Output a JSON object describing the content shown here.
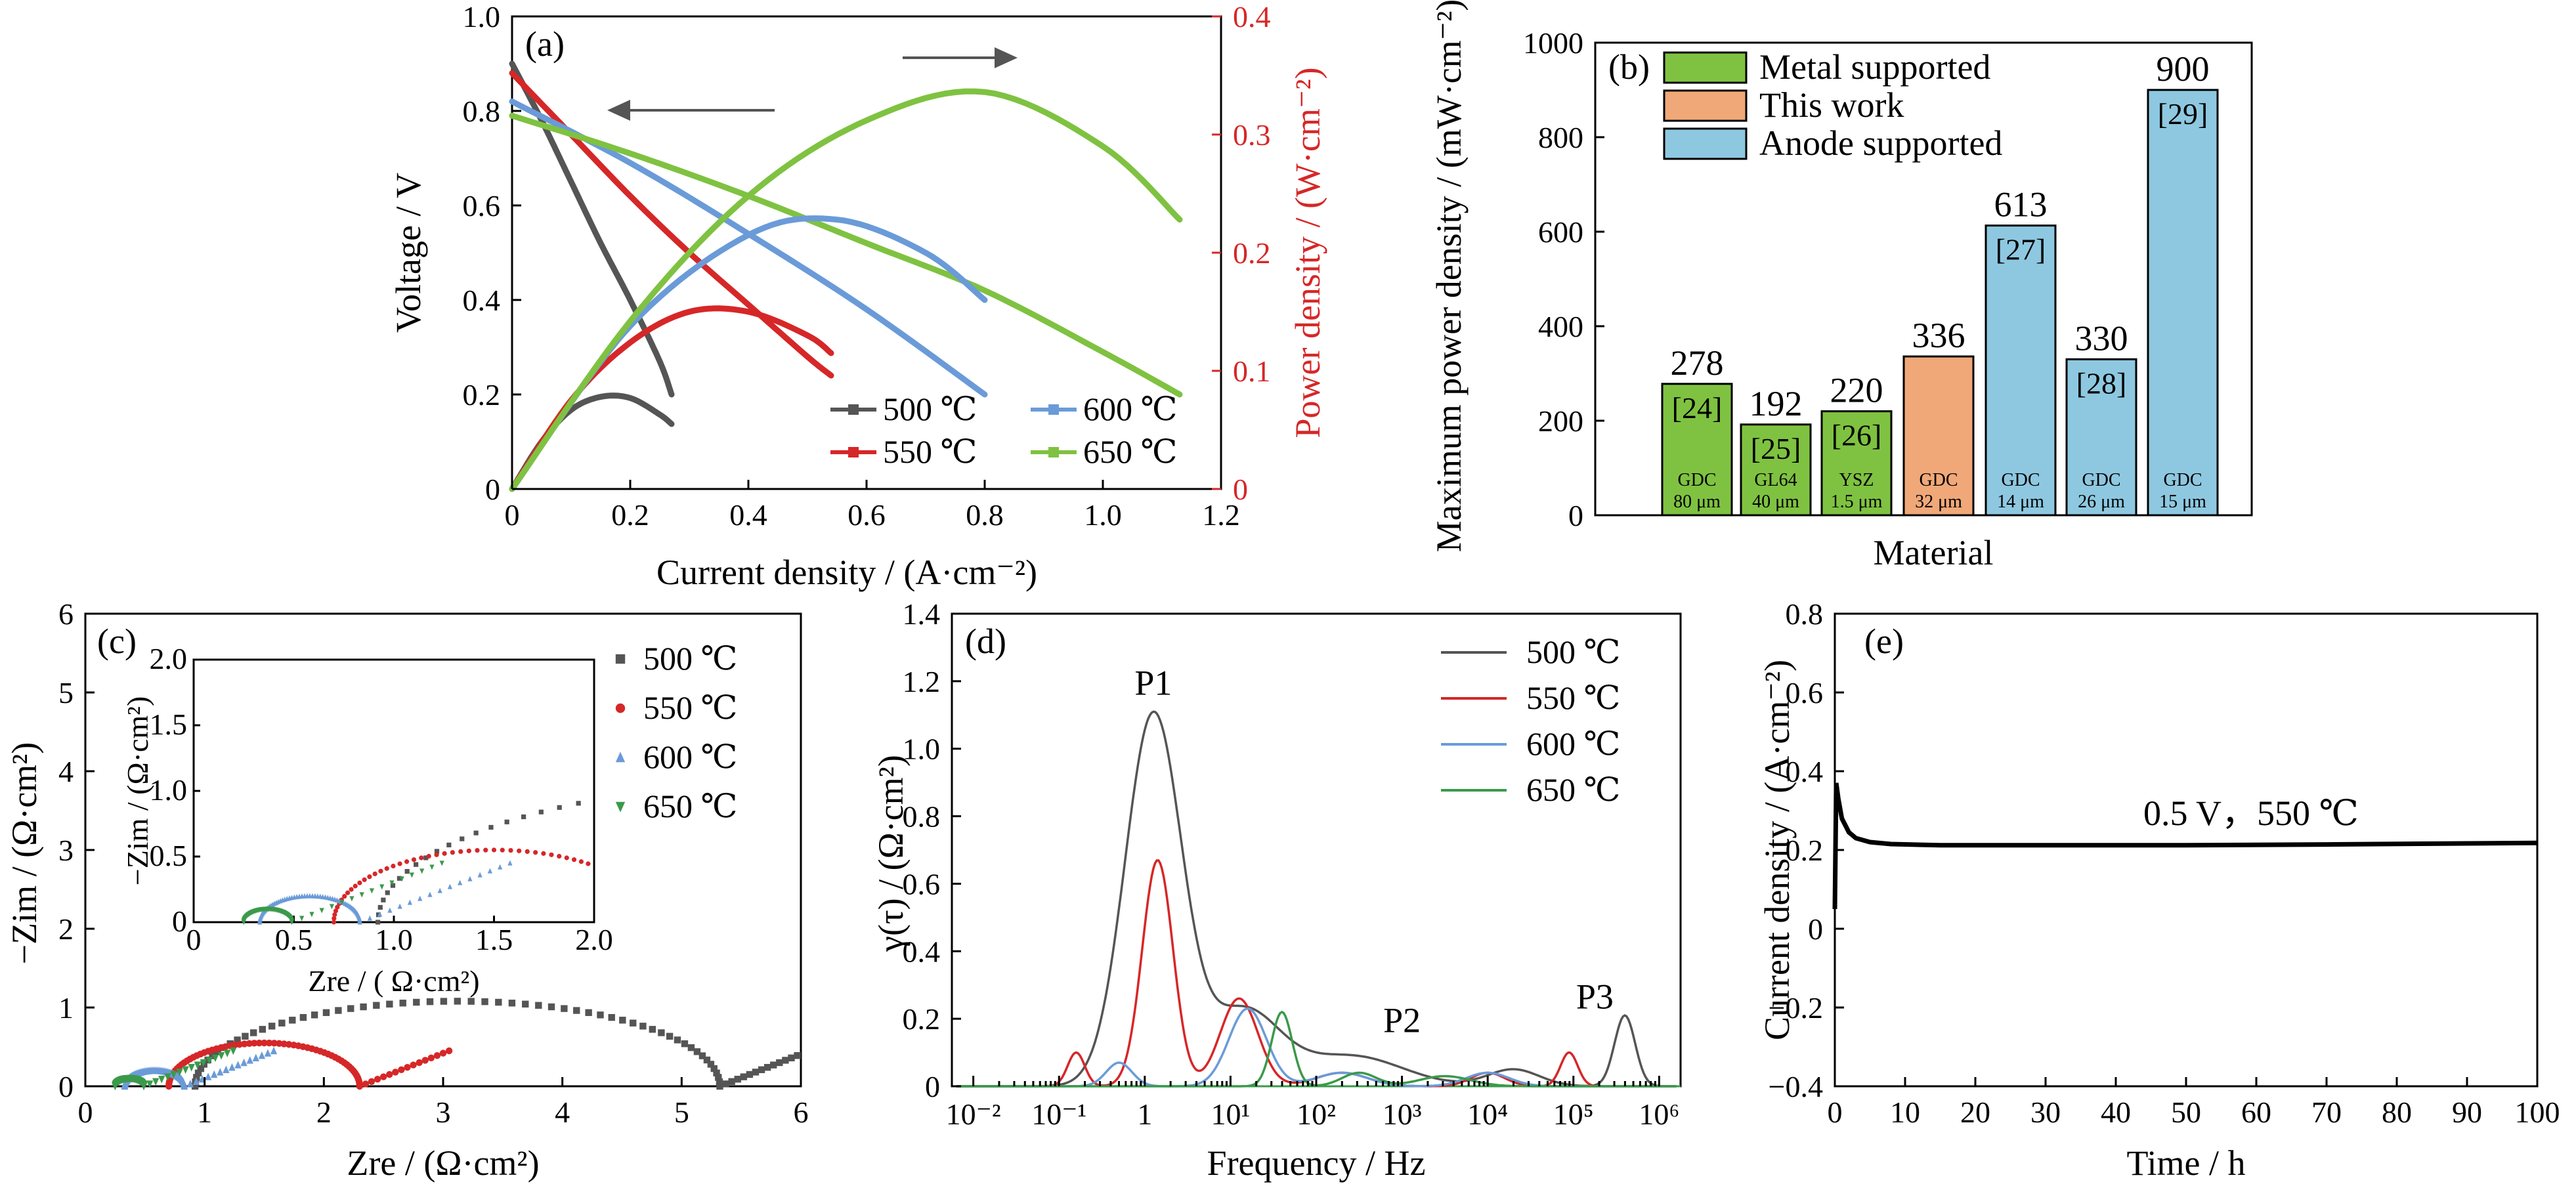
{
  "colors": {
    "black": "#555555",
    "red": "#d62728",
    "blue": "#6a9bd8",
    "green": "#7fc241",
    "green_dark": "#3a9a4a",
    "orange": "#f0a878",
    "lightblue": "#8ec8e0"
  },
  "chart_data": [
    {
      "id": "a",
      "panel_label": "(a)",
      "type": "line",
      "xlabel": "Current density / (A·cm⁻²)",
      "ylabel": "Voltage / V",
      "y2label": "Power density / (W·cm⁻²)",
      "xlim": [
        0,
        1.2
      ],
      "ylim": [
        0,
        1.0
      ],
      "y2lim": [
        0,
        0.4
      ],
      "xticks": [
        "0",
        "0.2",
        "0.4",
        "0.6",
        "0.8",
        "1.0",
        "1.2"
      ],
      "yticks": [
        "0",
        "0.2",
        "0.4",
        "0.6",
        "0.8",
        "1.0"
      ],
      "y2ticks": [
        "0",
        "0.1",
        "0.2",
        "0.3",
        "0.4"
      ],
      "legend": [
        "500 ℃",
        "550 ℃",
        "600 ℃",
        "650 ℃"
      ],
      "voltage_series": [
        {
          "name": "500 ℃",
          "color": "black",
          "x": [
            0,
            0.05,
            0.1,
            0.15,
            0.2,
            0.25,
            0.27
          ],
          "y": [
            0.9,
            0.78,
            0.65,
            0.52,
            0.4,
            0.27,
            0.2
          ]
        },
        {
          "name": "550 ℃",
          "color": "red",
          "x": [
            0,
            0.1,
            0.2,
            0.3,
            0.4,
            0.5,
            0.54
          ],
          "y": [
            0.88,
            0.75,
            0.62,
            0.5,
            0.39,
            0.28,
            0.24
          ]
        },
        {
          "name": "600 ℃",
          "color": "blue",
          "x": [
            0,
            0.2,
            0.4,
            0.6,
            0.8
          ],
          "y": [
            0.82,
            0.69,
            0.54,
            0.38,
            0.2
          ]
        },
        {
          "name": "650 ℃",
          "color": "green",
          "x": [
            0,
            0.2,
            0.4,
            0.6,
            0.8,
            1.0,
            1.13
          ],
          "y": [
            0.79,
            0.71,
            0.62,
            0.52,
            0.42,
            0.29,
            0.2
          ]
        }
      ],
      "power_series": [
        {
          "name": "500 ℃",
          "color": "black",
          "x": [
            0,
            0.05,
            0.1,
            0.15,
            0.2,
            0.25,
            0.27
          ],
          "y": [
            0,
            0.04,
            0.067,
            0.078,
            0.077,
            0.063,
            0.055
          ]
        },
        {
          "name": "550 ℃",
          "color": "red",
          "x": [
            0,
            0.1,
            0.2,
            0.3,
            0.4,
            0.5,
            0.54
          ],
          "y": [
            0,
            0.075,
            0.124,
            0.15,
            0.15,
            0.13,
            0.115
          ]
        },
        {
          "name": "600 ℃",
          "color": "blue",
          "x": [
            0,
            0.2,
            0.4,
            0.55,
            0.7,
            0.8
          ],
          "y": [
            0,
            0.138,
            0.215,
            0.228,
            0.2,
            0.16
          ]
        },
        {
          "name": "650 ℃",
          "color": "green",
          "x": [
            0,
            0.2,
            0.4,
            0.6,
            0.8,
            1.0,
            1.13
          ],
          "y": [
            0,
            0.142,
            0.248,
            0.312,
            0.336,
            0.29,
            0.228
          ]
        }
      ]
    },
    {
      "id": "b",
      "panel_label": "(b)",
      "type": "bar",
      "xlabel": "Material",
      "ylabel": "Maximum power density / (mW·cm⁻²)",
      "ylim": [
        0,
        1000
      ],
      "yticks": [
        "0",
        "200",
        "400",
        "600",
        "800",
        "1000"
      ],
      "legend": [
        {
          "label": "Metal supported",
          "color": "green"
        },
        {
          "label": "This work",
          "color": "orange"
        },
        {
          "label": "Anode supported",
          "color": "lightblue"
        }
      ],
      "bars": [
        {
          "value": 278,
          "ref": "[24]",
          "mat": "GDC",
          "thick": "80 μm",
          "color": "green"
        },
        {
          "value": 192,
          "ref": "[25]",
          "mat": "GL64",
          "thick": "40 μm",
          "color": "green"
        },
        {
          "value": 220,
          "ref": "[26]",
          "mat": "YSZ",
          "thick": "1.5 μm",
          "color": "green"
        },
        {
          "value": 336,
          "ref": "",
          "mat": "GDC",
          "thick": "32 μm",
          "color": "orange"
        },
        {
          "value": 613,
          "ref": "[27]",
          "mat": "GDC",
          "thick": "14 μm",
          "color": "lightblue"
        },
        {
          "value": 330,
          "ref": "[28]",
          "mat": "GDC",
          "thick": "26 μm",
          "color": "lightblue"
        },
        {
          "value": 900,
          "ref": "[29]",
          "mat": "GDC",
          "thick": "15 μm",
          "color": "lightblue"
        }
      ]
    },
    {
      "id": "c",
      "panel_label": "(c)",
      "type": "scatter",
      "xlabel": "Zre / (Ω·cm²)",
      "ylabel": "−Zim / (Ω·cm²)",
      "xlim": [
        0,
        6
      ],
      "ylim": [
        0,
        6
      ],
      "xticks": [
        "0",
        "1",
        "2",
        "3",
        "4",
        "5",
        "6"
      ],
      "yticks": [
        "0",
        "1",
        "2",
        "3",
        "4",
        "5",
        "6"
      ],
      "inset": {
        "xlim": [
          0,
          2.0
        ],
        "ylim": [
          0,
          2.0
        ],
        "xticks": [
          "0",
          "0.5",
          "1.0",
          "1.5",
          "2.0"
        ],
        "yticks": [
          "0",
          "0.5",
          "1.0",
          "1.5",
          "2.0"
        ],
        "xlabel": "Zre / ( Ω·cm²)",
        "ylabel": "−Zim / (Ω·cm²)"
      },
      "legend": [
        "500 ℃",
        "550 ℃",
        "600 ℃",
        "650 ℃"
      ],
      "series": [
        {
          "name": "500 ℃",
          "color": "black",
          "marker": "square",
          "center": 3.2,
          "radius": 2.2,
          "height": 1.08,
          "start": 0.92
        },
        {
          "name": "550 ℃",
          "color": "red",
          "marker": "circle",
          "center": 1.55,
          "radius": 0.8,
          "height": 0.55,
          "start": 0.7
        },
        {
          "name": "600 ℃",
          "color": "blue",
          "marker": "triangle",
          "center": 0.6,
          "radius": 0.25,
          "height": 0.2,
          "start": 0.33
        },
        {
          "name": "650 ℃",
          "color": "green_dark",
          "marker": "triangle-down",
          "center": 0.38,
          "radius": 0.12,
          "height": 0.1,
          "start": 0.25
        }
      ]
    },
    {
      "id": "d",
      "panel_label": "(d)",
      "type": "line",
      "xlabel": "Frequency / Hz",
      "ylabel": "γ(τ) / (Ω·cm²)",
      "xscale": "log",
      "xlim": [
        -2,
        6
      ],
      "ylim": [
        0,
        1.4
      ],
      "xticks": [
        "10⁻²",
        "10⁻¹",
        "1",
        "10¹",
        "10²",
        "10³",
        "10⁴",
        "10⁵",
        "10⁶"
      ],
      "yticks": [
        "0",
        "0.2",
        "0.4",
        "0.6",
        "0.8",
        "1.0",
        "1.2",
        "1.4"
      ],
      "annotations": [
        "P1",
        "P2",
        "P3"
      ],
      "legend": [
        "500 ℃",
        "550 ℃",
        "600 ℃",
        "650 ℃"
      ],
      "series": [
        {
          "name": "500 ℃",
          "color": "black",
          "peaks": [
            [
              0.1,
              1.1,
              0.33
            ],
            [
              1.15,
              0.22,
              0.42
            ],
            [
              2.4,
              0.09,
              0.6
            ],
            [
              4.3,
              0.05,
              0.3
            ],
            [
              5.6,
              0.21,
              0.12
            ]
          ]
        },
        {
          "name": "550 ℃",
          "color": "red",
          "peaks": [
            [
              -0.8,
              0.1,
              0.1
            ],
            [
              0.15,
              0.67,
              0.18
            ],
            [
              1.1,
              0.26,
              0.22
            ],
            [
              2.3,
              0.04,
              0.3
            ],
            [
              4.0,
              0.04,
              0.2
            ],
            [
              4.95,
              0.1,
              0.1
            ]
          ]
        },
        {
          "name": "600 ℃",
          "color": "blue",
          "peaks": [
            [
              -0.3,
              0.07,
              0.15
            ],
            [
              1.2,
              0.23,
              0.22
            ],
            [
              2.3,
              0.04,
              0.3
            ],
            [
              4.0,
              0.04,
              0.25
            ]
          ]
        },
        {
          "name": "650 ℃",
          "color": "green_dark",
          "peaks": [
            [
              1.6,
              0.22,
              0.12
            ],
            [
              2.5,
              0.04,
              0.2
            ],
            [
              3.5,
              0.03,
              0.3
            ]
          ]
        }
      ]
    },
    {
      "id": "e",
      "panel_label": "(e)",
      "type": "line",
      "xlabel": "Time / h",
      "ylabel": "Current density / (A·cm⁻²)",
      "xlim": [
        0,
        100
      ],
      "ylim": [
        -0.4,
        0.8
      ],
      "xticks": [
        "0",
        "10",
        "20",
        "30",
        "40",
        "50",
        "60",
        "70",
        "80",
        "90",
        "100"
      ],
      "yticks": [
        "−0.4",
        "−0.2",
        "0",
        "0.2",
        "0.4",
        "0.6",
        "0.8"
      ],
      "annotation": "0.5 V，550 ℃",
      "series": [
        {
          "color": "black",
          "x": [
            0,
            0.2,
            0.5,
            1,
            2,
            3,
            5,
            8,
            15,
            30,
            50,
            70,
            85,
            100
          ],
          "y": [
            0.05,
            0.37,
            0.33,
            0.28,
            0.245,
            0.23,
            0.22,
            0.215,
            0.212,
            0.212,
            0.212,
            0.214,
            0.216,
            0.218
          ]
        }
      ]
    }
  ]
}
